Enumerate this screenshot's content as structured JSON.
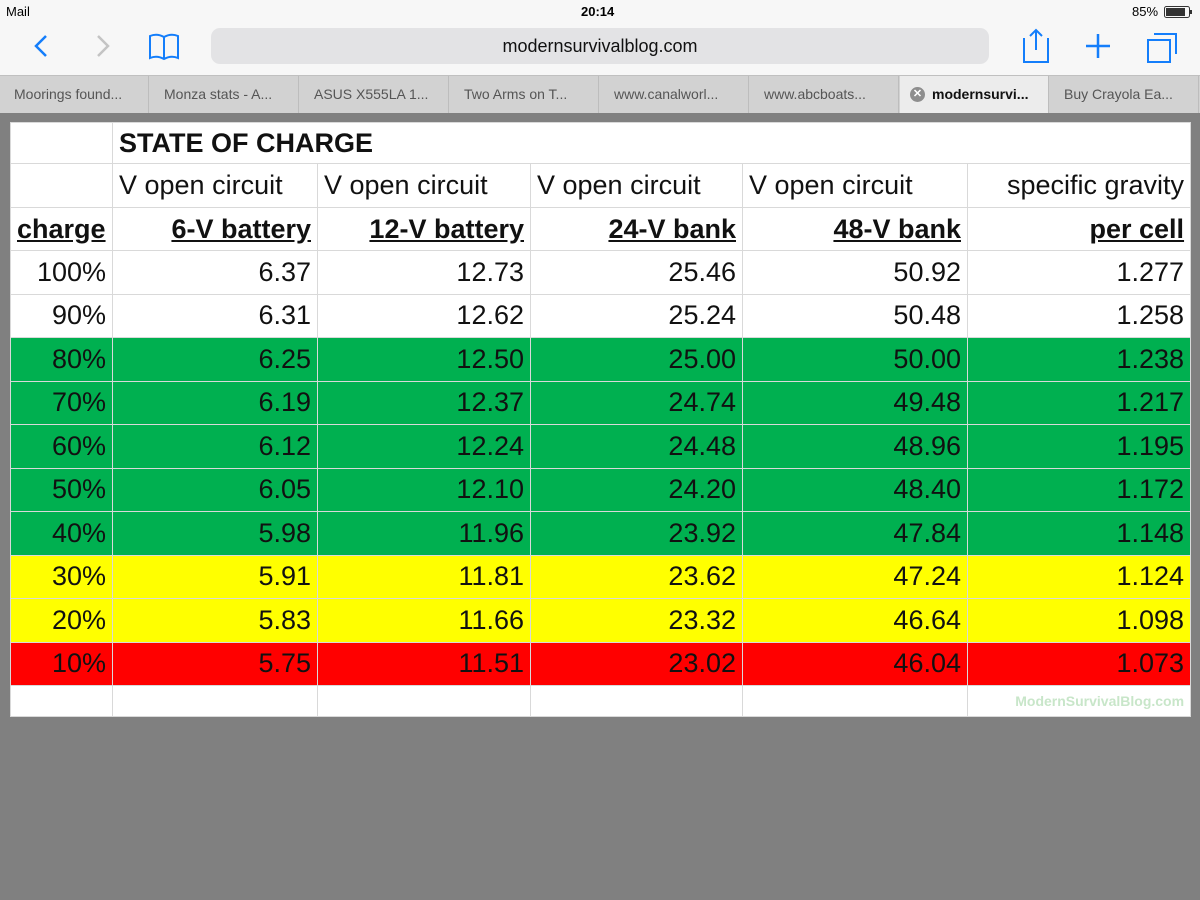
{
  "status": {
    "carrier": "Mail",
    "time": "20:14",
    "battery": "85%"
  },
  "toolbar": {
    "url": "modernsurvivalblog.com"
  },
  "tabs": {
    "items": [
      "Moorings found...",
      "Monza stats - A...",
      "ASUS X555LA 1...",
      "Two Arms on T...",
      "www.canalworl...",
      "www.abcboats...",
      "modernsurvi...",
      "Buy Crayola Ea..."
    ],
    "active": 6
  },
  "table": {
    "title": "STATE OF CHARGE",
    "header1": [
      "V open circuit",
      "V open circuit",
      "V open circuit",
      "V open circuit",
      "specific gravity"
    ],
    "header2": [
      "charge",
      "6-V battery",
      "12-V battery",
      "24-V bank",
      "48-V bank",
      "per cell"
    ],
    "rows": [
      {
        "cells": [
          "100%",
          "6.37",
          "12.73",
          "25.46",
          "50.92",
          "1.277"
        ],
        "color": "#ffffff"
      },
      {
        "cells": [
          "90%",
          "6.31",
          "12.62",
          "25.24",
          "50.48",
          "1.258"
        ],
        "color": "#ffffff"
      },
      {
        "cells": [
          "80%",
          "6.25",
          "12.50",
          "25.00",
          "50.00",
          "1.238"
        ],
        "color": "#00b050"
      },
      {
        "cells": [
          "70%",
          "6.19",
          "12.37",
          "24.74",
          "49.48",
          "1.217"
        ],
        "color": "#00b050"
      },
      {
        "cells": [
          "60%",
          "6.12",
          "12.24",
          "24.48",
          "48.96",
          "1.195"
        ],
        "color": "#00b050"
      },
      {
        "cells": [
          "50%",
          "6.05",
          "12.10",
          "24.20",
          "48.40",
          "1.172"
        ],
        "color": "#00b050"
      },
      {
        "cells": [
          "40%",
          "5.98",
          "11.96",
          "23.92",
          "47.84",
          "1.148"
        ],
        "color": "#00b050"
      },
      {
        "cells": [
          "30%",
          "5.91",
          "11.81",
          "23.62",
          "47.24",
          "1.124"
        ],
        "color": "#ffff00"
      },
      {
        "cells": [
          "20%",
          "5.83",
          "11.66",
          "23.32",
          "46.64",
          "1.098"
        ],
        "color": "#ffff00"
      },
      {
        "cells": [
          "10%",
          "5.75",
          "11.51",
          "23.02",
          "46.04",
          "1.073"
        ],
        "color": "#ff0000"
      }
    ],
    "watermark": "ModernSurvivalBlog.com"
  }
}
